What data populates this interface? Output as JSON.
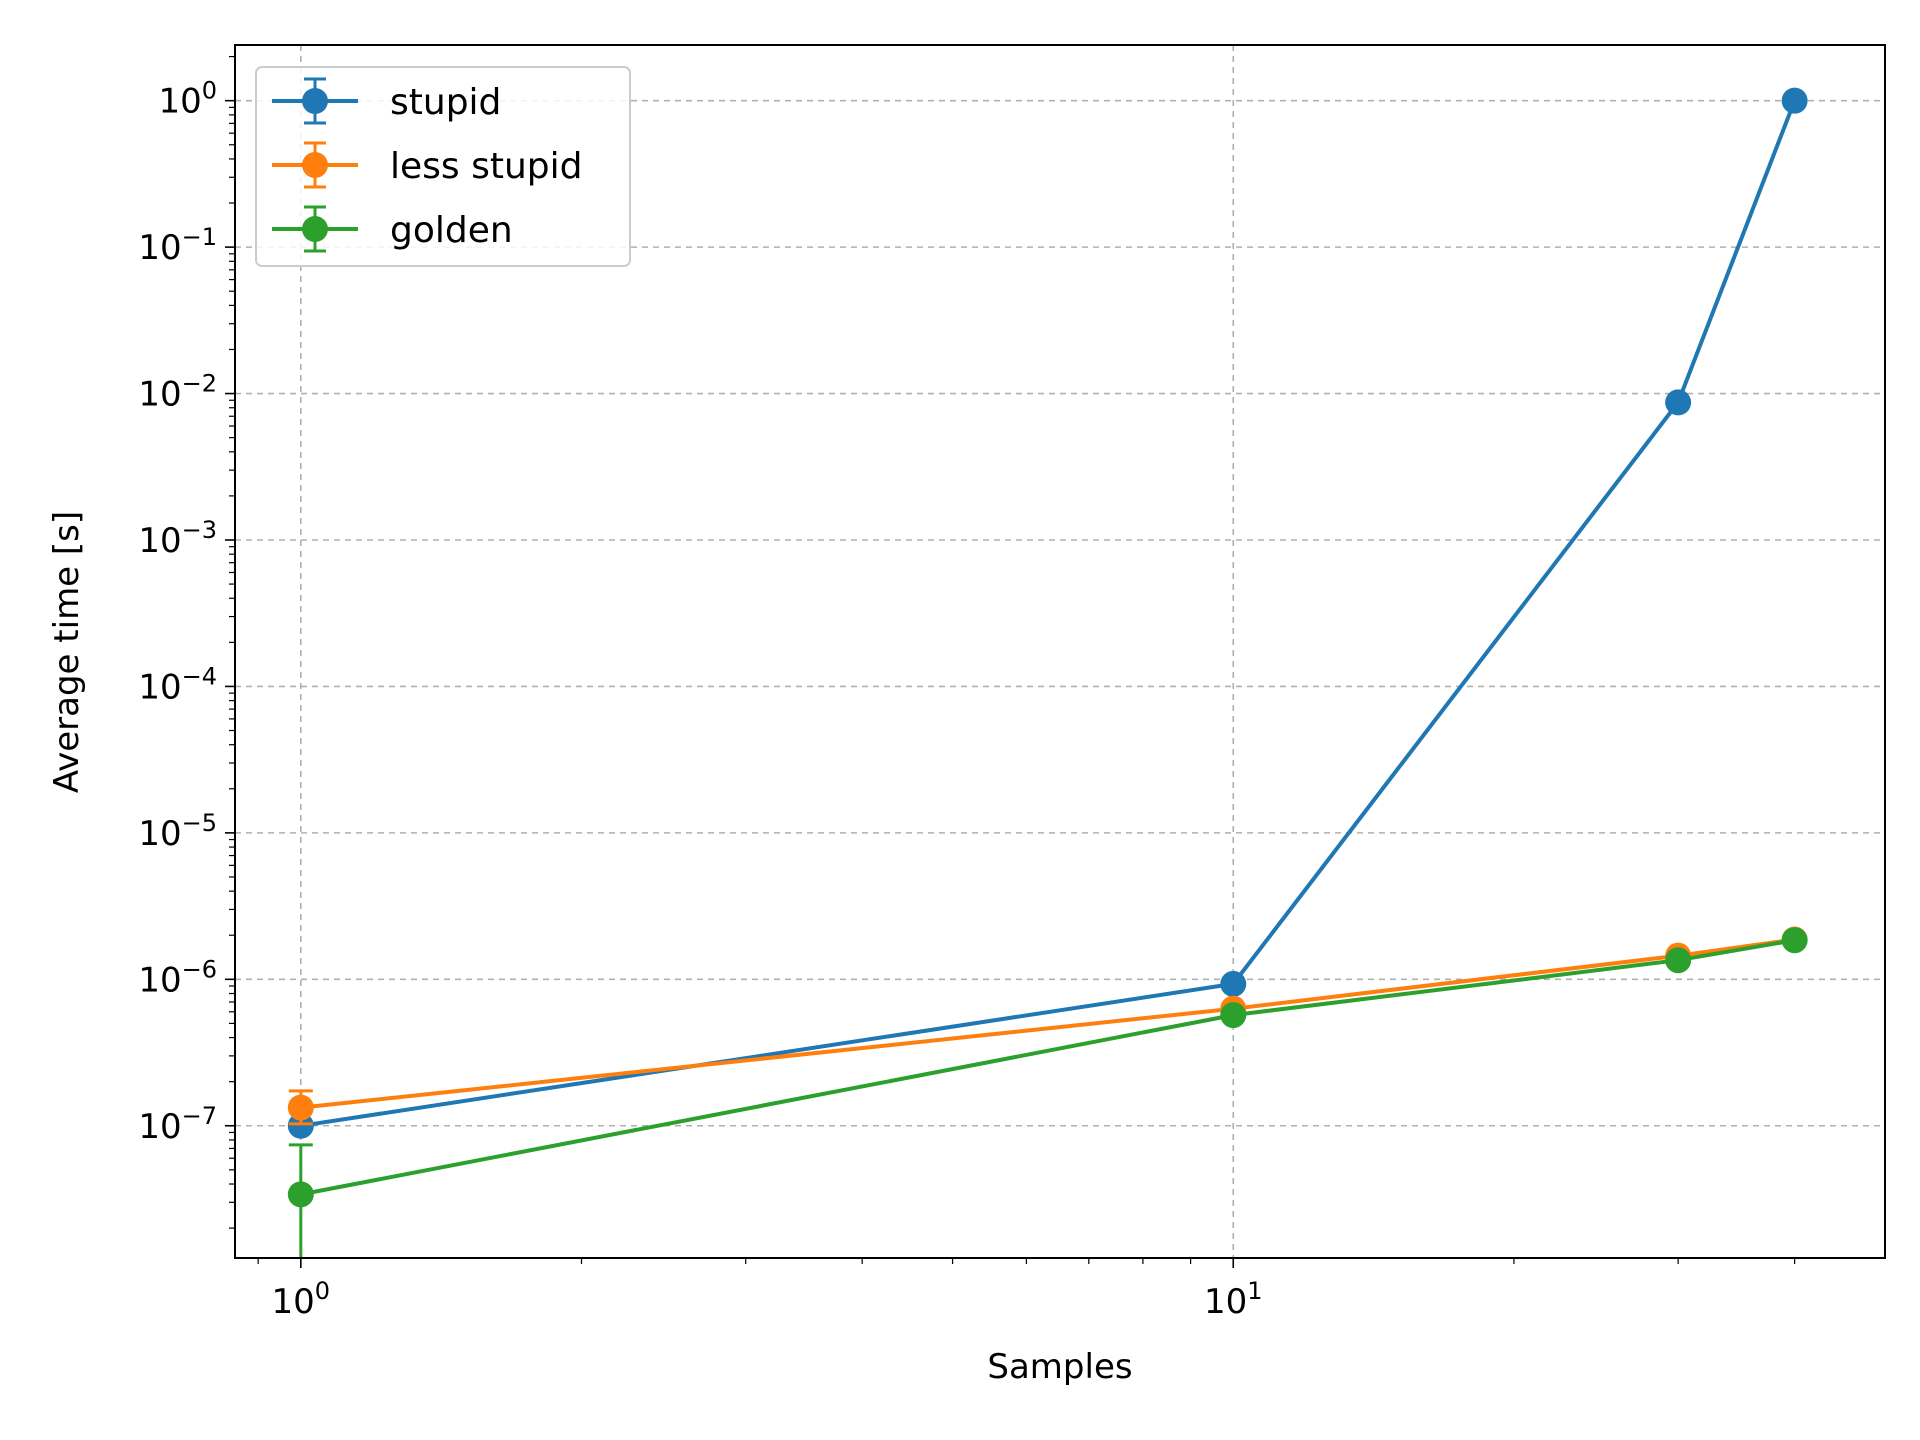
{
  "chart_data": {
    "type": "line",
    "title": "",
    "xlabel": "Samples",
    "ylabel": "Average time [s]",
    "xscale": "log",
    "yscale": "log",
    "xlim": [
      0.85,
      50
    ],
    "ylim": [
      1.25e-08,
      2.4
    ],
    "grid": true,
    "legend_position": "top-left",
    "x_ticks": [
      {
        "value": 1,
        "base": "10",
        "exp": "0"
      },
      {
        "value": 10,
        "base": "10",
        "exp": "1"
      }
    ],
    "y_ticks": [
      {
        "value": 1e-07,
        "base": "10",
        "exp": "−7"
      },
      {
        "value": 1e-06,
        "base": "10",
        "exp": "−6"
      },
      {
        "value": 1e-05,
        "base": "10",
        "exp": "−5"
      },
      {
        "value": 0.0001,
        "base": "10",
        "exp": "−4"
      },
      {
        "value": 0.001,
        "base": "10",
        "exp": "−3"
      },
      {
        "value": 0.01,
        "base": "10",
        "exp": "−2"
      },
      {
        "value": 0.1,
        "base": "10",
        "exp": "−1"
      },
      {
        "value": 1,
        "base": "10",
        "exp": "0"
      }
    ],
    "series": [
      {
        "name": "stupid",
        "color": "#1f77b4",
        "x": [
          1,
          10,
          30,
          40
        ],
        "y": [
          1e-07,
          9.3e-07,
          0.0087,
          1.0
        ],
        "yerr": [
          [
            0,
            0,
            0,
            0
          ],
          [
            0,
            0,
            0,
            0
          ]
        ]
      },
      {
        "name": "less stupid",
        "color": "#ff7f0e",
        "x": [
          1,
          10,
          30,
          40
        ],
        "y": [
          1.33e-07,
          6.3e-07,
          1.45e-06,
          1.87e-06
        ],
        "yerr": [
          [
            3e-08,
            0,
            0,
            0
          ],
          [
            4e-08,
            0,
            0,
            0
          ]
        ]
      },
      {
        "name": "golden",
        "color": "#2ca02c",
        "x": [
          1,
          10,
          30,
          40
        ],
        "y": [
          3.4e-08,
          5.7e-07,
          1.35e-06,
          1.85e-06
        ],
        "yerr": [
          [
            3.4e-08,
            0,
            0,
            0
          ],
          [
            4e-08,
            0,
            0,
            0
          ]
        ]
      }
    ]
  }
}
